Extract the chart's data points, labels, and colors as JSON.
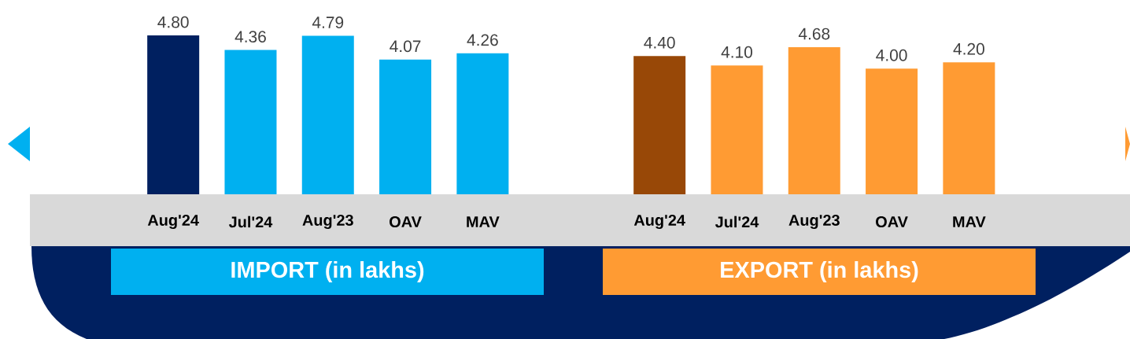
{
  "chart_data": [
    {
      "type": "bar",
      "title": "IMPORT (in lakhs)",
      "categories": [
        "Aug'24",
        "Jul'24",
        "Aug'23",
        "OAV",
        "MAV"
      ],
      "values": [
        4.8,
        4.36,
        4.79,
        4.07,
        4.26
      ],
      "value_labels": [
        "4.80",
        "4.36",
        "4.79",
        "4.07",
        "4.26"
      ],
      "colors": [
        "#002060",
        "#00b0f0",
        "#00b0f0",
        "#00b0f0",
        "#00b0f0"
      ]
    },
    {
      "type": "bar",
      "title": "EXPORT (in lakhs)",
      "categories": [
        "Aug'24",
        "Jul'24",
        "Aug'23",
        "OAV",
        "MAV"
      ],
      "values": [
        4.4,
        4.1,
        4.68,
        4.0,
        4.2
      ],
      "value_labels": [
        "4.40",
        "4.10",
        "4.68",
        "4.00",
        "4.20"
      ],
      "colors": [
        "#984807",
        "#ff9b33",
        "#ff9b33",
        "#ff9b33",
        "#ff9b33"
      ]
    }
  ]
}
